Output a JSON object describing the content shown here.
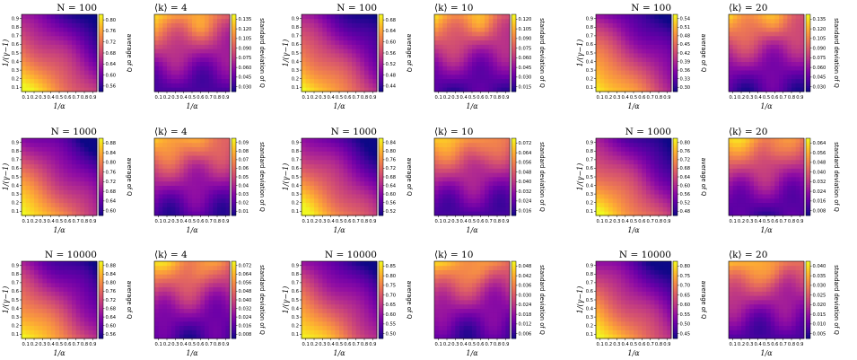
{
  "chart_data": [
    {
      "type": "heatmap",
      "row": 0,
      "col": 0,
      "metric": "average",
      "title": "N = 100",
      "xlabel": "1/α",
      "ylabel": "1/(γ−1)",
      "colorbar_label": "average of Q",
      "colorbar_ticks": [
        "0.56",
        "0.60",
        "0.64",
        "0.68",
        "0.72",
        "0.76",
        "0.80"
      ],
      "xticks": [
        "0.1",
        "0.2",
        "0.3",
        "0.4",
        "0.5",
        "0.6",
        "0.7",
        "0.8",
        "0.9"
      ],
      "yticks": [
        "0.1",
        "0.2",
        "0.3",
        "0.4",
        "0.5",
        "0.6",
        "0.7",
        "0.8",
        "0.9"
      ]
    },
    {
      "type": "heatmap",
      "row": 0,
      "col": 1,
      "metric": "std",
      "title": "⟨k⟩ = 4",
      "xlabel": "1/α",
      "ylabel": "",
      "colorbar_label": "standard deviation of Q",
      "colorbar_ticks": [
        "0.030",
        "0.045",
        "0.060",
        "0.075",
        "0.090",
        "0.105",
        "0.120",
        "0.135"
      ],
      "xticks": [
        "0.1",
        "0.2",
        "0.3",
        "0.4",
        "0.5",
        "0.6",
        "0.7",
        "0.8",
        "0.9"
      ],
      "yticks": []
    },
    {
      "type": "heatmap",
      "row": 0,
      "col": 2,
      "metric": "average",
      "title": "N = 100",
      "xlabel": "1/α",
      "ylabel": "1/(γ−1)",
      "colorbar_label": "average of Q",
      "colorbar_ticks": [
        "0.44",
        "0.48",
        "0.52",
        "0.56",
        "0.60",
        "0.64",
        "0.68"
      ],
      "xticks": [
        "0.1",
        "0.2",
        "0.3",
        "0.4",
        "0.5",
        "0.6",
        "0.7",
        "0.8",
        "0.9"
      ],
      "yticks": [
        "0.1",
        "0.2",
        "0.3",
        "0.4",
        "0.5",
        "0.6",
        "0.7",
        "0.8",
        "0.9"
      ]
    },
    {
      "type": "heatmap",
      "row": 0,
      "col": 3,
      "metric": "std",
      "title": "⟨k⟩ = 10",
      "xlabel": "1/α",
      "ylabel": "",
      "colorbar_label": "standard deviation of Q",
      "colorbar_ticks": [
        "0.015",
        "0.030",
        "0.045",
        "0.060",
        "0.075",
        "0.090",
        "0.105",
        "0.120"
      ],
      "xticks": [
        "0.1",
        "0.2",
        "0.3",
        "0.4",
        "0.5",
        "0.6",
        "0.7",
        "0.8",
        "0.9"
      ],
      "yticks": []
    },
    {
      "type": "heatmap",
      "row": 0,
      "col": 4,
      "metric": "average",
      "title": "N = 100",
      "xlabel": "1/α",
      "ylabel": "1/(γ−1)",
      "colorbar_label": "average of Q",
      "colorbar_ticks": [
        "0.30",
        "0.33",
        "0.36",
        "0.39",
        "0.42",
        "0.45",
        "0.48",
        "0.51",
        "0.54"
      ],
      "xticks": [
        "0.1",
        "0.2",
        "0.3",
        "0.4",
        "0.5",
        "0.6",
        "0.7",
        "0.8",
        "0.9"
      ],
      "yticks": [
        "0.1",
        "0.2",
        "0.3",
        "0.4",
        "0.5",
        "0.6",
        "0.7",
        "0.8",
        "0.9"
      ]
    },
    {
      "type": "heatmap",
      "row": 0,
      "col": 5,
      "metric": "std",
      "title": "⟨k⟩ = 20",
      "xlabel": "1/α",
      "ylabel": "",
      "colorbar_label": "standard deviation of Q",
      "colorbar_ticks": [
        "0.030",
        "0.045",
        "0.060",
        "0.075",
        "0.090",
        "0.105",
        "0.120",
        "0.135"
      ],
      "xticks": [
        "0.1",
        "0.2",
        "0.3",
        "0.4",
        "0.5",
        "0.6",
        "0.7",
        "0.8",
        "0.9"
      ],
      "yticks": []
    },
    {
      "type": "heatmap",
      "row": 1,
      "col": 0,
      "metric": "average",
      "title": "N = 1000",
      "xlabel": "1/α",
      "ylabel": "1/(γ−1)",
      "colorbar_label": "average of Q",
      "colorbar_ticks": [
        "0.60",
        "0.64",
        "0.68",
        "0.72",
        "0.76",
        "0.80",
        "0.84",
        "0.88"
      ],
      "xticks": [
        "0.1",
        "0.2",
        "0.3",
        "0.4",
        "0.5",
        "0.6",
        "0.7",
        "0.8",
        "0.9"
      ],
      "yticks": [
        "0.1",
        "0.2",
        "0.3",
        "0.4",
        "0.5",
        "0.6",
        "0.7",
        "0.8",
        "0.9"
      ]
    },
    {
      "type": "heatmap",
      "row": 1,
      "col": 1,
      "metric": "std",
      "title": "⟨k⟩ = 4",
      "xlabel": "1/α",
      "ylabel": "",
      "colorbar_label": "standard deviation of Q",
      "colorbar_ticks": [
        "0.01",
        "0.02",
        "0.03",
        "0.04",
        "0.05",
        "0.06",
        "0.07",
        "0.08",
        "0.09"
      ],
      "xticks": [
        "0.1",
        "0.2",
        "0.3",
        "0.4",
        "0.5",
        "0.6",
        "0.7",
        "0.8",
        "0.9"
      ],
      "yticks": []
    },
    {
      "type": "heatmap",
      "row": 1,
      "col": 2,
      "metric": "average",
      "title": "N = 1000",
      "xlabel": "1/α",
      "ylabel": "1/(γ−1)",
      "colorbar_label": "average of Q",
      "colorbar_ticks": [
        "0.52",
        "0.56",
        "0.60",
        "0.64",
        "0.68",
        "0.72",
        "0.76",
        "0.80",
        "0.84"
      ],
      "xticks": [
        "0.1",
        "0.2",
        "0.3",
        "0.4",
        "0.5",
        "0.6",
        "0.7",
        "0.8",
        "0.9"
      ],
      "yticks": [
        "0.1",
        "0.2",
        "0.3",
        "0.4",
        "0.5",
        "0.6",
        "0.7",
        "0.8",
        "0.9"
      ]
    },
    {
      "type": "heatmap",
      "row": 1,
      "col": 3,
      "metric": "std",
      "title": "⟨k⟩ = 10",
      "xlabel": "1/α",
      "ylabel": "",
      "colorbar_label": "standard deviation of Q",
      "colorbar_ticks": [
        "0.016",
        "0.024",
        "0.032",
        "0.040",
        "0.048",
        "0.056",
        "0.064",
        "0.072"
      ],
      "xticks": [
        "0.1",
        "0.2",
        "0.3",
        "0.4",
        "0.5",
        "0.6",
        "0.7",
        "0.8",
        "0.9"
      ],
      "yticks": []
    },
    {
      "type": "heatmap",
      "row": 1,
      "col": 4,
      "metric": "average",
      "title": "N = 1000",
      "xlabel": "1/α",
      "ylabel": "1/(γ−1)",
      "colorbar_label": "average of Q",
      "colorbar_ticks": [
        "0.48",
        "0.52",
        "0.56",
        "0.60",
        "0.64",
        "0.68",
        "0.72",
        "0.76",
        "0.80"
      ],
      "xticks": [
        "0.1",
        "0.2",
        "0.3",
        "0.4",
        "0.5",
        "0.6",
        "0.7",
        "0.8",
        "0.9"
      ],
      "yticks": [
        "0.1",
        "0.2",
        "0.3",
        "0.4",
        "0.5",
        "0.6",
        "0.7",
        "0.8",
        "0.9"
      ]
    },
    {
      "type": "heatmap",
      "row": 1,
      "col": 5,
      "metric": "std",
      "title": "⟨k⟩ = 20",
      "xlabel": "1/α",
      "ylabel": "",
      "colorbar_label": "standard deviation of Q",
      "colorbar_ticks": [
        "0.008",
        "0.016",
        "0.024",
        "0.032",
        "0.040",
        "0.048",
        "0.056",
        "0.064"
      ],
      "xticks": [
        "0.1",
        "0.2",
        "0.3",
        "0.4",
        "0.5",
        "0.6",
        "0.7",
        "0.8",
        "0.9"
      ],
      "yticks": []
    },
    {
      "type": "heatmap",
      "row": 2,
      "col": 0,
      "metric": "average",
      "title": "N = 10000",
      "xlabel": "1/α",
      "ylabel": "1/(γ−1)",
      "colorbar_label": "average of Q",
      "colorbar_ticks": [
        "0.56",
        "0.60",
        "0.64",
        "0.68",
        "0.72",
        "0.76",
        "0.80",
        "0.84",
        "0.88"
      ],
      "xticks": [
        "0.1",
        "0.2",
        "0.3",
        "0.4",
        "0.5",
        "0.6",
        "0.7",
        "0.8",
        "0.9"
      ],
      "yticks": [
        "0.1",
        "0.2",
        "0.3",
        "0.4",
        "0.5",
        "0.6",
        "0.7",
        "0.8",
        "0.9"
      ]
    },
    {
      "type": "heatmap",
      "row": 2,
      "col": 1,
      "metric": "std",
      "title": "⟨k⟩ = 4",
      "xlabel": "1/α",
      "ylabel": "",
      "colorbar_label": "standard deviation of Q",
      "colorbar_ticks": [
        "0.008",
        "0.016",
        "0.024",
        "0.032",
        "0.040",
        "0.048",
        "0.056",
        "0.064",
        "0.072"
      ],
      "xticks": [
        "0.1",
        "0.2",
        "0.3",
        "0.4",
        "0.5",
        "0.6",
        "0.7",
        "0.8",
        "0.9"
      ],
      "yticks": []
    },
    {
      "type": "heatmap",
      "row": 2,
      "col": 2,
      "metric": "average",
      "title": "N = 10000",
      "xlabel": "1/α",
      "ylabel": "1/(γ−1)",
      "colorbar_label": "average of Q",
      "colorbar_ticks": [
        "0.50",
        "0.55",
        "0.60",
        "0.65",
        "0.70",
        "0.75",
        "0.80",
        "0.85"
      ],
      "xticks": [
        "0.1",
        "0.2",
        "0.3",
        "0.4",
        "0.5",
        "0.6",
        "0.7",
        "0.8",
        "0.9"
      ],
      "yticks": [
        "0.1",
        "0.2",
        "0.3",
        "0.4",
        "0.5",
        "0.6",
        "0.7",
        "0.8",
        "0.9"
      ]
    },
    {
      "type": "heatmap",
      "row": 2,
      "col": 3,
      "metric": "std",
      "title": "⟨k⟩ = 10",
      "xlabel": "1/α",
      "ylabel": "",
      "colorbar_label": "standard deviation of Q",
      "colorbar_ticks": [
        "0.006",
        "0.012",
        "0.018",
        "0.024",
        "0.030",
        "0.036",
        "0.042",
        "0.048"
      ],
      "xticks": [
        "0.1",
        "0.2",
        "0.3",
        "0.4",
        "0.5",
        "0.6",
        "0.7",
        "0.8",
        "0.9"
      ],
      "yticks": []
    },
    {
      "type": "heatmap",
      "row": 2,
      "col": 4,
      "metric": "average",
      "title": "N = 10000",
      "xlabel": "1/α",
      "ylabel": "1/(γ−1)",
      "colorbar_label": "average of Q",
      "colorbar_ticks": [
        "0.45",
        "0.50",
        "0.55",
        "0.60",
        "0.65",
        "0.70",
        "0.75",
        "0.80"
      ],
      "xticks": [
        "0.1",
        "0.2",
        "0.3",
        "0.4",
        "0.5",
        "0.6",
        "0.7",
        "0.8",
        "0.9"
      ],
      "yticks": [
        "0.1",
        "0.2",
        "0.3",
        "0.4",
        "0.5",
        "0.6",
        "0.7",
        "0.8",
        "0.9"
      ]
    },
    {
      "type": "heatmap",
      "row": 2,
      "col": 5,
      "metric": "std",
      "title": "⟨k⟩ = 20",
      "xlabel": "1/α",
      "ylabel": "",
      "colorbar_label": "standard deviation of Q",
      "colorbar_ticks": [
        "0.005",
        "0.010",
        "0.015",
        "0.020",
        "0.025",
        "0.030",
        "0.035",
        "0.040"
      ],
      "xticks": [
        "0.1",
        "0.2",
        "0.3",
        "0.4",
        "0.5",
        "0.6",
        "0.7",
        "0.8",
        "0.9"
      ],
      "yticks": []
    }
  ],
  "colors": {
    "low": "#0d0887",
    "mid": "#cc4778",
    "high": "#f0f921"
  }
}
